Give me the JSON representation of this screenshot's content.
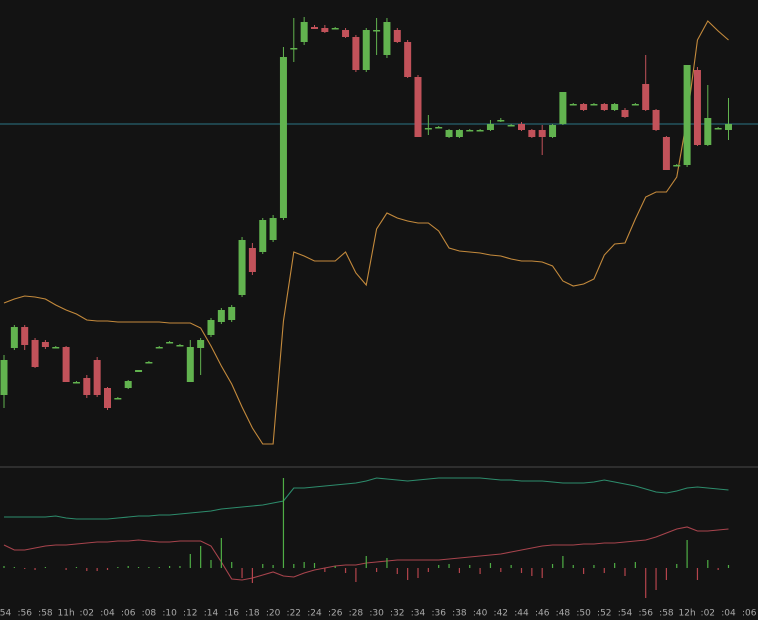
{
  "chart_data": [
    {
      "type": "candlestick",
      "categories": [
        ":54",
        null,
        ":56",
        null,
        ":58",
        null,
        "11h",
        null,
        ":02",
        null,
        ":04",
        null,
        ":06",
        null,
        ":08",
        null,
        ":10",
        null,
        ":12",
        null,
        ":14",
        null,
        ":16",
        null,
        ":18",
        null,
        ":20",
        null,
        ":22",
        null,
        ":24",
        null,
        ":26",
        null,
        ":28",
        null,
        ":30",
        null,
        ":32",
        null,
        ":34",
        null,
        ":36",
        null,
        ":38",
        null,
        ":40",
        null,
        ":42",
        null,
        ":44",
        null,
        ":46",
        null,
        ":48",
        null,
        ":50",
        null,
        ":52",
        null,
        ":54",
        null,
        ":56",
        null,
        ":58",
        null,
        "12h",
        null,
        ":02",
        null,
        ":04",
        null,
        ":06"
      ],
      "open": [
        70,
        117,
        138,
        125,
        123,
        118,
        118,
        83,
        87,
        105,
        77,
        67,
        77,
        93,
        103,
        118,
        123,
        120,
        83,
        117,
        130,
        143,
        145,
        170,
        217,
        213,
        225,
        247,
        417,
        423,
        438,
        437,
        437,
        435,
        428,
        395,
        435,
        410,
        435,
        423,
        388,
        337,
        338,
        328,
        328,
        335,
        335,
        335,
        345,
        340,
        341,
        335,
        335,
        328,
        341,
        361,
        361,
        361,
        361,
        355,
        355,
        361,
        381,
        355,
        328,
        300,
        300,
        395,
        320,
        337,
        335,
        null,
        null
      ],
      "high": [
        110,
        140,
        140,
        127,
        125,
        119,
        119,
        84,
        90,
        108,
        78,
        68,
        85,
        95,
        104,
        119,
        124,
        121,
        125,
        127,
        147,
        157,
        160,
        228,
        222,
        247,
        250,
        418,
        447,
        448,
        440,
        440,
        438,
        437,
        430,
        437,
        447,
        447,
        437,
        425,
        390,
        350,
        339,
        336,
        336,
        336,
        336,
        345,
        347,
        341,
        343,
        336,
        340,
        341,
        373,
        362,
        362,
        362,
        362,
        362,
        357,
        362,
        410,
        356,
        329,
        301,
        400,
        398,
        380,
        338,
        367,
        null,
        null
      ],
      "low": [
        57,
        115,
        115,
        97,
        116,
        117,
        83,
        82,
        67,
        68,
        55,
        66,
        76,
        93,
        102,
        117,
        122,
        119,
        83,
        90,
        128,
        141,
        143,
        168,
        190,
        211,
        223,
        245,
        403,
        420,
        436,
        432,
        436,
        427,
        393,
        393,
        410,
        407,
        422,
        387,
        328,
        330,
        337,
        327,
        327,
        334,
        334,
        334,
        343,
        339,
        334,
        327,
        310,
        327,
        340,
        360,
        354,
        360,
        354,
        354,
        347,
        360,
        354,
        334,
        295,
        299,
        298,
        319,
        319,
        336,
        325,
        null,
        null
      ],
      "close": [
        105,
        138,
        120,
        98,
        118,
        118,
        83,
        83,
        70,
        70,
        57,
        67,
        84,
        95,
        103,
        118,
        123,
        120,
        118,
        125,
        145,
        155,
        158,
        225,
        193,
        245,
        247,
        408,
        417,
        443,
        436,
        433,
        437,
        428,
        395,
        435,
        435,
        443,
        423,
        388,
        328,
        337,
        338,
        335,
        335,
        335,
        335,
        341,
        345,
        340,
        335,
        328,
        328,
        340,
        373,
        361,
        355,
        361,
        355,
        361,
        348,
        361,
        355,
        335,
        295,
        300,
        400,
        320,
        347,
        337,
        341,
        null,
        null
      ],
      "up_color": "#62b34f",
      "down_color": "#c2525a",
      "ylim": [
        0,
        465
      ],
      "price_line": 341,
      "price_line_color": "#2b7485",
      "series": [
        {
          "color": "#c48a3c",
          "values": [
            162,
            166,
            169,
            168,
            166,
            160,
            155,
            151,
            145,
            144,
            144,
            143,
            143,
            143,
            143,
            143,
            142,
            142,
            142,
            137,
            119,
            99,
            81,
            58,
            37,
            21,
            21,
            144,
            213,
            209,
            204,
            204,
            204,
            213,
            192,
            180,
            236,
            252,
            247,
            244,
            242,
            242,
            234,
            217,
            214,
            213,
            212,
            210,
            209,
            206,
            204,
            204,
            203,
            199,
            184,
            179,
            181,
            186,
            210,
            221,
            222,
            246,
            268,
            273,
            273,
            288,
            347,
            425,
            444,
            434,
            425,
            null,
            null
          ]
        }
      ]
    },
    {
      "type": "line",
      "ylim": [
        0,
        132
      ],
      "y2lim": [
        -32,
        100
      ],
      "series": [
        {
          "color": "#2d8c6c",
          "values": [
            83,
            83,
            83,
            83,
            83,
            84,
            82,
            81,
            81,
            81,
            81,
            82,
            83,
            84,
            84,
            85,
            85,
            86,
            87,
            88,
            89,
            91,
            92,
            93,
            94,
            95,
            97,
            99,
            112,
            112,
            113,
            114,
            115,
            116,
            117,
            119,
            122,
            121,
            120,
            119,
            120,
            121,
            122,
            122,
            122,
            122,
            122,
            121,
            120,
            120,
            119,
            119,
            119,
            118,
            117,
            117,
            117,
            118,
            120,
            118,
            116,
            114,
            111,
            108,
            107,
            109,
            112,
            113,
            112,
            111,
            110,
            null,
            null
          ]
        },
        {
          "color": "#a8444d",
          "values": [
            55,
            50,
            50,
            52,
            54,
            55,
            55,
            56,
            57,
            58,
            58,
            59,
            59,
            60,
            59,
            58,
            58,
            59,
            59,
            59,
            54,
            38,
            21,
            20,
            22,
            25,
            28,
            24,
            23,
            27,
            30,
            32,
            34,
            35,
            35,
            37,
            38,
            39,
            40,
            40,
            40,
            40,
            40,
            41,
            42,
            43,
            44,
            45,
            46,
            48,
            50,
            52,
            54,
            55,
            55,
            55,
            56,
            56,
            57,
            57,
            58,
            59,
            60,
            63,
            67,
            71,
            73,
            69,
            69,
            70,
            71,
            null,
            null
          ]
        },
        {
          "type": "bar",
          "axis": "y2",
          "up_color": "#4fae45",
          "down_color": "#b5444c",
          "values": [
            2,
            1,
            -1,
            -2,
            1,
            0,
            -2,
            1,
            -3,
            -3,
            -2,
            1,
            2,
            1,
            1,
            1,
            2,
            2,
            14,
            22,
            8,
            30,
            6,
            -10,
            -15,
            4,
            3,
            90,
            4,
            6,
            5,
            -4,
            2,
            -5,
            -14,
            12,
            -4,
            10,
            -6,
            -12,
            -10,
            -4,
            3,
            4,
            -5,
            3,
            -6,
            5,
            -4,
            3,
            -5,
            -8,
            -10,
            4,
            12,
            3,
            -6,
            3,
            -5,
            5,
            -8,
            6,
            -30,
            -22,
            -12,
            4,
            28,
            -12,
            8,
            -2,
            3,
            null,
            null
          ]
        }
      ]
    }
  ]
}
